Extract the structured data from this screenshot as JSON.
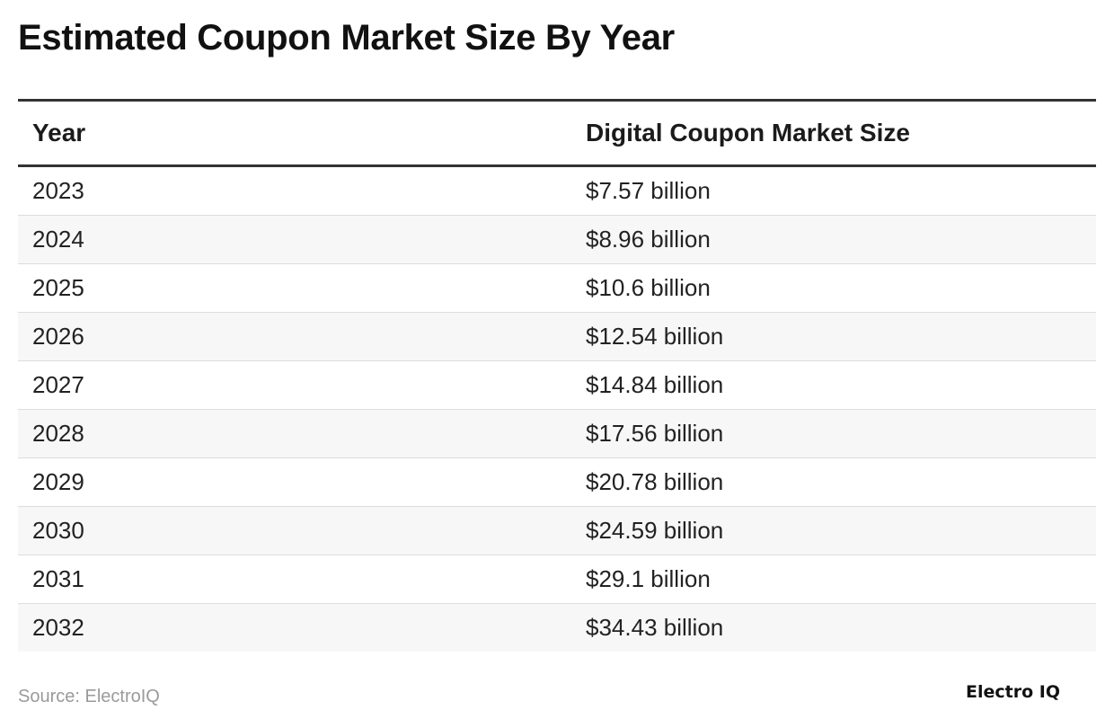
{
  "title": "Estimated Coupon Market Size By Year",
  "source": "Source: ElectroIQ",
  "logo": "Electro IQ",
  "chart_data": {
    "type": "table",
    "title": "Estimated Coupon Market Size By Year",
    "columns": [
      "Year",
      "Digital Coupon Market Size"
    ],
    "rows": [
      [
        "2023",
        "$7.57 billion"
      ],
      [
        "2024",
        "$8.96 billion"
      ],
      [
        "2025",
        "$10.6 billion"
      ],
      [
        "2026",
        "$12.54 billion"
      ],
      [
        "2027",
        "$14.84 billion"
      ],
      [
        "2028",
        "$17.56 billion"
      ],
      [
        "2029",
        "$20.78 billion"
      ],
      [
        "2030",
        "$24.59 billion"
      ],
      [
        "2031",
        "$29.1 billion"
      ],
      [
        "2032",
        "$34.43 billion"
      ]
    ]
  }
}
